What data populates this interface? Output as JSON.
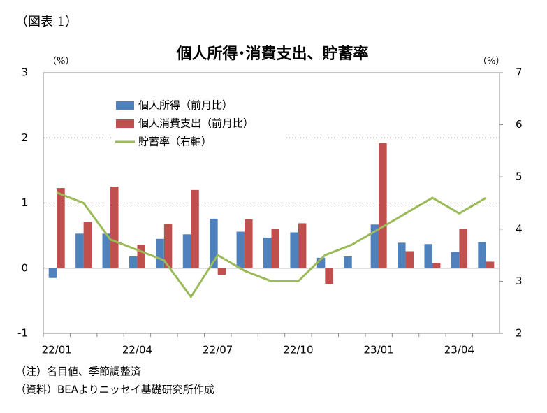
{
  "chart_data": {
    "type": "bar_line",
    "label": "（図表 1）",
    "title": "個人所得･消費支出、貯蓄率",
    "ylabel": "（%）",
    "y2label": "（%）",
    "categories": [
      "22/01",
      null,
      null,
      "22/04",
      null,
      null,
      "22/07",
      null,
      null,
      "22/10",
      null,
      null,
      "23/01",
      null,
      null,
      "23/04",
      null
    ],
    "series": [
      {
        "name": "個人所得（前月比）",
        "type": "bar",
        "color": "#4f81bd",
        "values": [
          -0.15,
          0.53,
          0.53,
          0.18,
          0.45,
          0.52,
          0.76,
          0.56,
          0.47,
          0.55,
          0.16,
          0.18,
          0.67,
          0.39,
          0.37,
          0.25,
          0.4
        ]
      },
      {
        "name": "個人消費支出（前月比）",
        "type": "bar",
        "color": "#c0504d",
        "values": [
          1.23,
          0.71,
          1.25,
          0.36,
          0.68,
          1.2,
          -0.1,
          0.75,
          0.6,
          0.69,
          -0.24,
          0.0,
          1.92,
          0.26,
          0.08,
          0.6,
          0.1
        ]
      },
      {
        "name": "貯蓄率（右軸）",
        "type": "line",
        "axis": "y2",
        "color": "#9bbb59",
        "values": [
          4.7,
          4.5,
          3.8,
          3.6,
          3.4,
          2.7,
          3.5,
          3.2,
          3.0,
          3.0,
          3.5,
          3.7,
          4.0,
          4.3,
          4.6,
          4.3,
          4.6
        ]
      }
    ],
    "ylim": [
      -1,
      3
    ],
    "yticks": [
      -1,
      0,
      1,
      2,
      3
    ],
    "y2lim": [
      2,
      7
    ],
    "y2ticks": [
      2,
      3,
      4,
      5,
      6,
      7
    ],
    "grid": true,
    "notes": [
      "（注）名目値、季節調整済",
      "（資料）BEAよりニッセイ基礎研究所作成"
    ]
  }
}
